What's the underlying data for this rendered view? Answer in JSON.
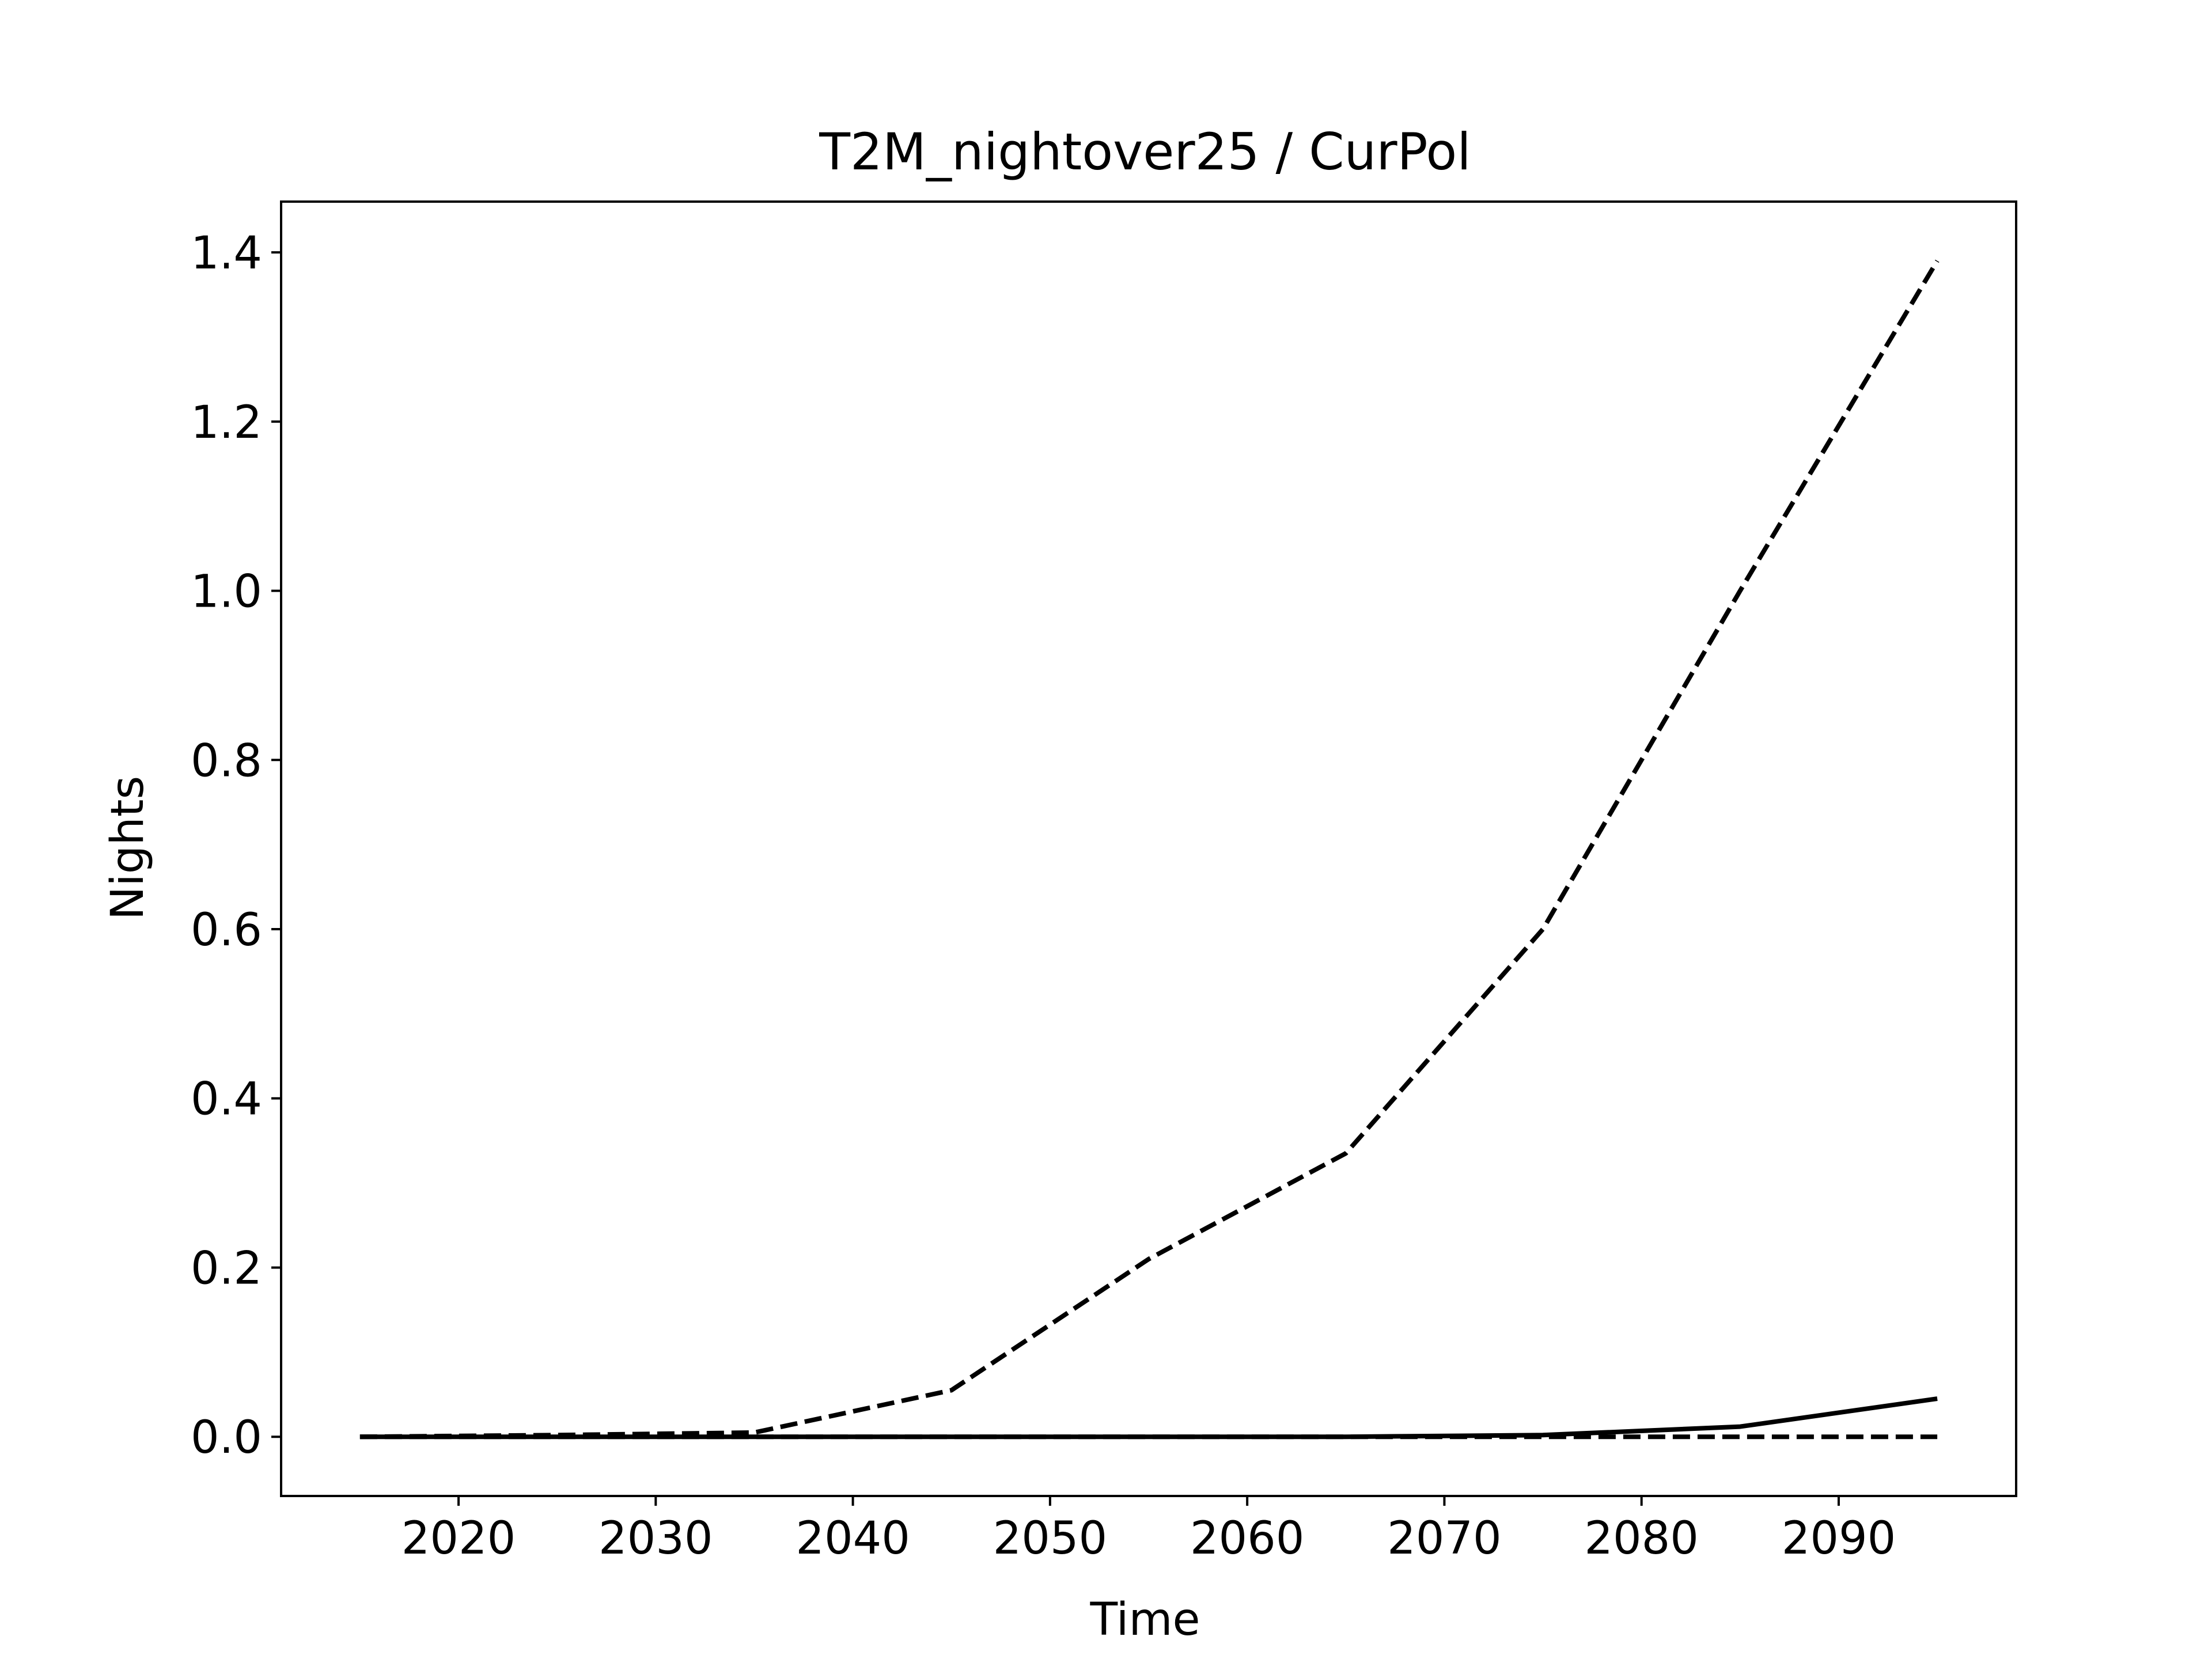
{
  "chart_data": {
    "type": "line",
    "title": "T2M_nightover25 / CurPol",
    "xlabel": "Time",
    "ylabel": "Nights",
    "xlim": [
      2011,
      2099
    ],
    "ylim": [
      -0.07,
      1.46
    ],
    "xticks": [
      2020,
      2030,
      2040,
      2050,
      2060,
      2070,
      2080,
      2090
    ],
    "yticks": [
      0.0,
      0.2,
      0.4,
      0.6,
      0.8,
      1.0,
      1.2,
      1.4
    ],
    "ytick_labels": [
      "0.0",
      "0.2",
      "0.4",
      "0.6",
      "0.8",
      "1.0",
      "1.2",
      "1.4"
    ],
    "grid": false,
    "x": [
      2015,
      2025,
      2035,
      2045,
      2055,
      2065,
      2075,
      2085,
      2095
    ],
    "series": [
      {
        "style": "dashed",
        "color": "#000000",
        "values": [
          0.0,
          0.002,
          0.005,
          0.055,
          0.21,
          0.335,
          0.6,
          1.0,
          1.39
        ]
      },
      {
        "style": "solid",
        "color": "#000000",
        "values": [
          0.0,
          0.0,
          0.0,
          0.0,
          0.0,
          0.0,
          0.002,
          0.012,
          0.045
        ]
      },
      {
        "style": "dashed",
        "color": "#000000",
        "values": [
          0.0,
          0.0,
          0.0,
          0.0,
          0.0,
          0.0,
          0.0,
          0.0,
          0.0
        ]
      }
    ]
  }
}
